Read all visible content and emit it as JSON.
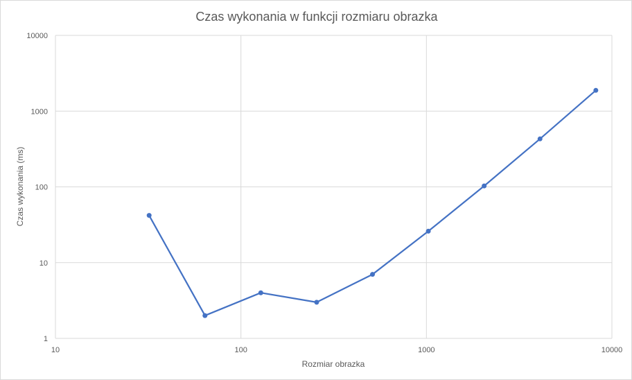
{
  "chart_data": {
    "type": "line",
    "title": "Czas wykonania w funkcji rozmiaru obrazka",
    "xlabel": "Rozmiar obrazka",
    "ylabel": "Czas wykonania (ms)",
    "x_scale": "log",
    "y_scale": "log",
    "xlim": [
      10,
      10000
    ],
    "ylim": [
      1,
      10000
    ],
    "x_ticks": [
      "10",
      "100",
      "1000",
      "10000"
    ],
    "y_ticks": [
      "1",
      "10",
      "100",
      "1000",
      "10000"
    ],
    "grid": true,
    "legend": "none",
    "series": [
      {
        "color": "#4472c4",
        "points": [
          {
            "x": 32,
            "y": 42
          },
          {
            "x": 64,
            "y": 2
          },
          {
            "x": 128,
            "y": 4
          },
          {
            "x": 256,
            "y": 3
          },
          {
            "x": 512,
            "y": 7
          },
          {
            "x": 1024,
            "y": 26
          },
          {
            "x": 2048,
            "y": 103
          },
          {
            "x": 4096,
            "y": 430
          },
          {
            "x": 8192,
            "y": 1880
          }
        ]
      }
    ],
    "grid_color": "#d9d9d9",
    "text_color": "#595959"
  }
}
